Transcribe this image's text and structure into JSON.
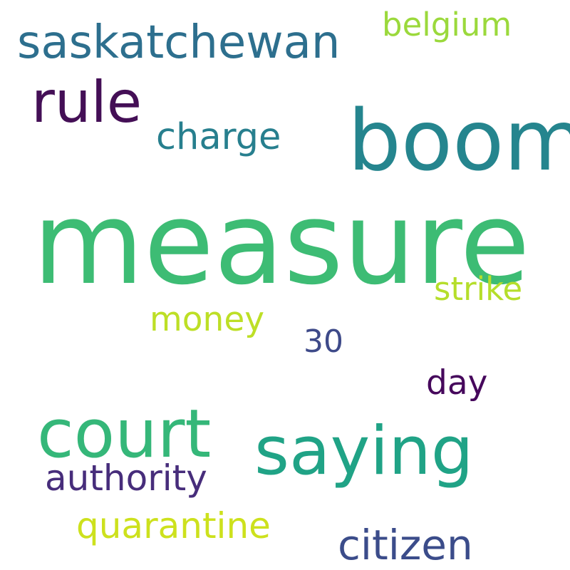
{
  "words": {
    "measure": {
      "text": "measure",
      "color": "#3dbc74"
    },
    "boom": {
      "text": "boom",
      "color": "#25858e"
    },
    "saying": {
      "text": "saying",
      "color": "#20a386"
    },
    "court": {
      "text": "court",
      "color": "#35b779"
    },
    "rule": {
      "text": "rule",
      "color": "#440f56"
    },
    "saskatchewan": {
      "text": "saskatchewan",
      "color": "#2d6f8e"
    },
    "citizen": {
      "text": "citizen",
      "color": "#3b4c8a"
    },
    "charge": {
      "text": "charge",
      "color": "#277f8e"
    },
    "quarantine": {
      "text": "quarantine",
      "color": "#cde11d"
    },
    "authority": {
      "text": "authority",
      "color": "#472d7b"
    },
    "money": {
      "text": "money",
      "color": "#bddf26"
    },
    "strike": {
      "text": "strike",
      "color": "#b5de2b"
    },
    "belgium": {
      "text": "belgium",
      "color": "#9bd93c"
    },
    "day": {
      "text": "day",
      "color": "#46085c"
    },
    "30": {
      "text": "30",
      "color": "#3e4a89"
    }
  }
}
